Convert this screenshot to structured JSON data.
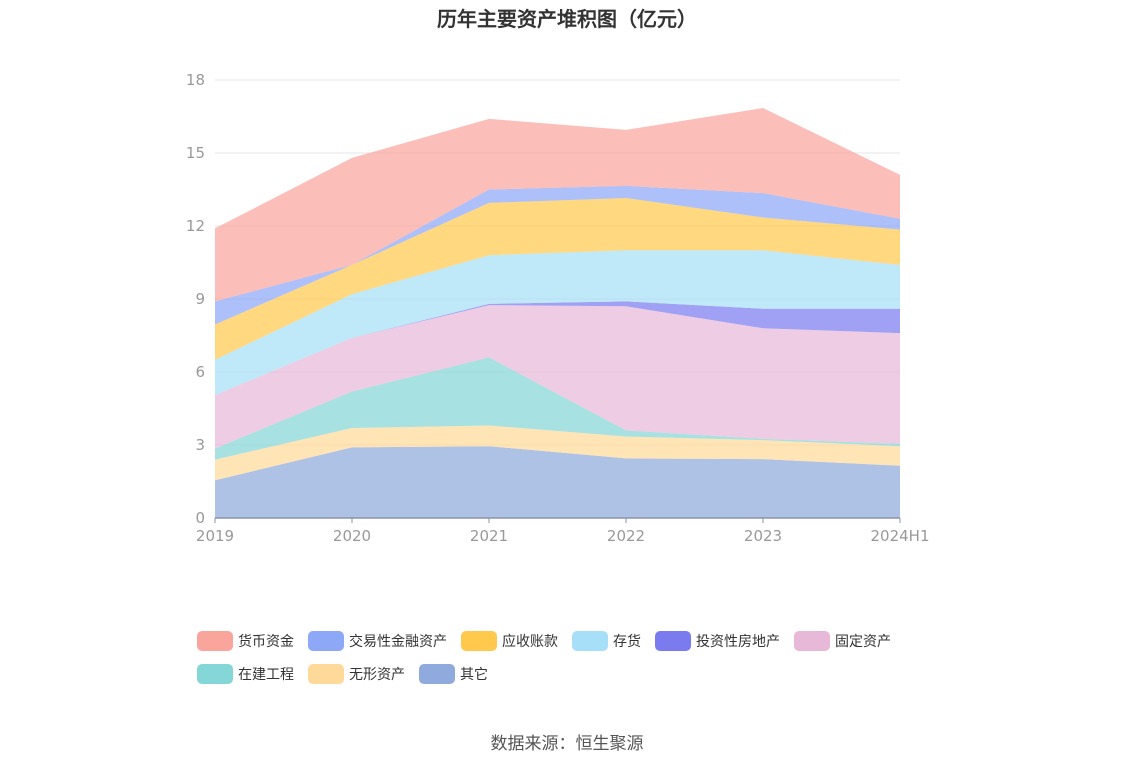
{
  "chart_data": {
    "type": "area",
    "stacked": true,
    "title": "历年主要资产堆积图（亿元）",
    "x": [
      "2019",
      "2020",
      "2021",
      "2022",
      "2023",
      "2024H1"
    ],
    "ylim": [
      0,
      18
    ],
    "yticks": [
      0,
      3,
      6,
      9,
      12,
      15,
      18
    ],
    "grid": true,
    "legend_position": "bottom",
    "series": [
      {
        "name": "其它",
        "color": "#8faadc",
        "values": [
          1.55,
          2.9,
          2.95,
          2.45,
          2.42,
          2.15
        ]
      },
      {
        "name": "无形资产",
        "color": "#ffd99a",
        "values": [
          0.85,
          0.8,
          0.85,
          0.9,
          0.78,
          0.8
        ]
      },
      {
        "name": "在建工程",
        "color": "#85d6d6",
        "values": [
          0.45,
          1.5,
          2.8,
          0.25,
          0.05,
          0.1
        ]
      },
      {
        "name": "固定资产",
        "color": "#e8b8d8",
        "values": [
          2.2,
          2.2,
          2.15,
          5.1,
          4.55,
          4.55
        ]
      },
      {
        "name": "投资性房地产",
        "color": "#7b7bf0",
        "values": [
          0.0,
          0.0,
          0.05,
          0.2,
          0.8,
          1.0
        ]
      },
      {
        "name": "存货",
        "color": "#a6dff7",
        "values": [
          1.45,
          1.8,
          2.0,
          2.1,
          2.4,
          1.8
        ]
      },
      {
        "name": "应收账款",
        "color": "#ffc94d",
        "values": [
          1.45,
          1.2,
          2.15,
          2.15,
          1.35,
          1.45
        ]
      },
      {
        "name": "交易性金融资产",
        "color": "#8ea8f8",
        "values": [
          0.95,
          0.0,
          0.55,
          0.5,
          1.0,
          0.45
        ]
      },
      {
        "name": "货币资金",
        "color": "#f9a59c",
        "values": [
          3.0,
          4.4,
          2.9,
          2.3,
          3.5,
          1.8
        ]
      }
    ]
  },
  "legend_rows": [
    [
      "货币资金",
      "交易性金融资产",
      "应收账款",
      "存货",
      "投资性房地产",
      "固定资产"
    ],
    [
      "在建工程",
      "无形资产",
      "其它"
    ]
  ],
  "source": "数据来源：恒生聚源"
}
